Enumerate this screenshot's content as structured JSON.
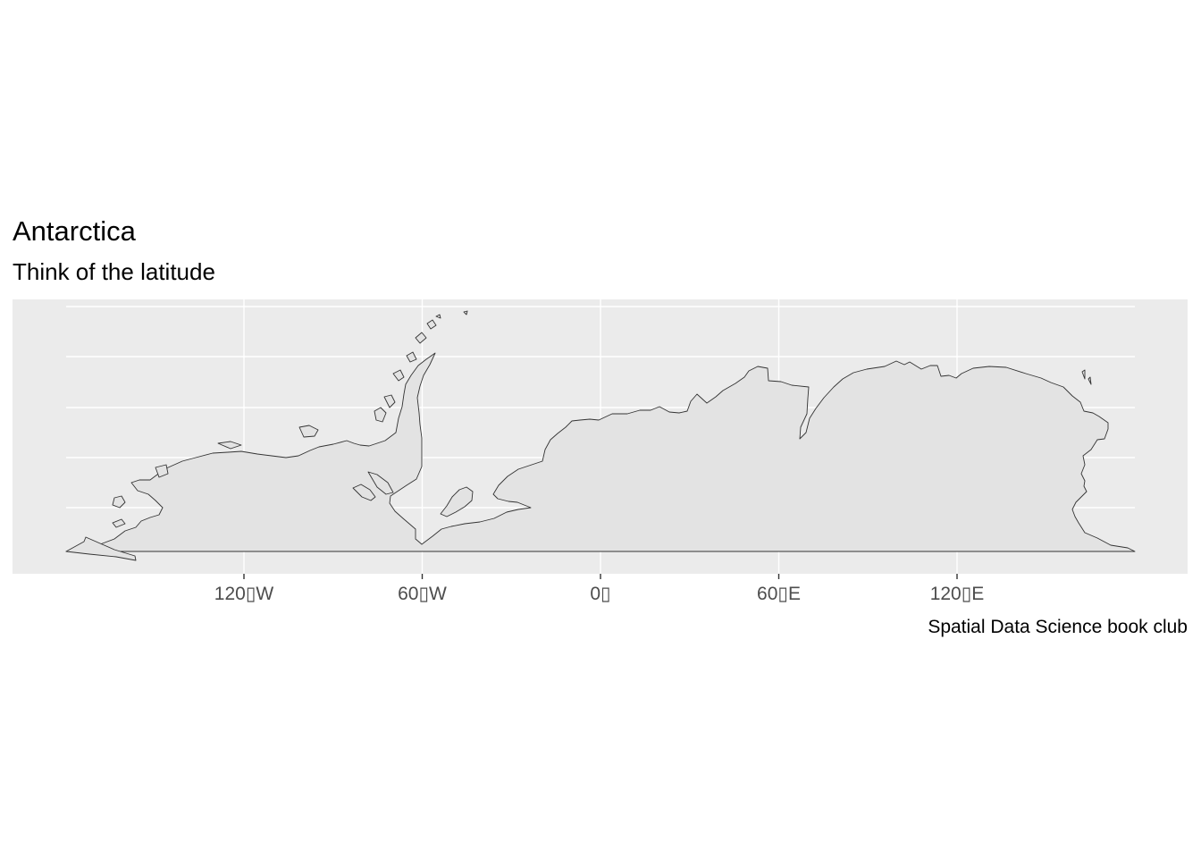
{
  "title": "Antarctica",
  "subtitle": "Think of the latitude",
  "caption": "Spatial Data Science book club",
  "colors": {
    "panel_background": "#ebebeb",
    "grid": "#ffffff",
    "land_fill": "#e3e3e3",
    "land_stroke": "#333333",
    "tick_text": "#4d4d4d"
  },
  "axes": {
    "x_ticks": [
      {
        "value": -120,
        "label": "120\u0000W"
      },
      {
        "value": -60,
        "label": "60\u0000W"
      },
      {
        "value": 0,
        "label": "0\u0000"
      },
      {
        "value": 60,
        "label": "60\u0000E"
      },
      {
        "value": 120,
        "label": "120\u0000E"
      }
    ],
    "x_range": [
      -180,
      180
    ],
    "grid": true
  },
  "map": {
    "region": "Antarctica",
    "projection": "equirectangular (longitude/latitude)"
  }
}
